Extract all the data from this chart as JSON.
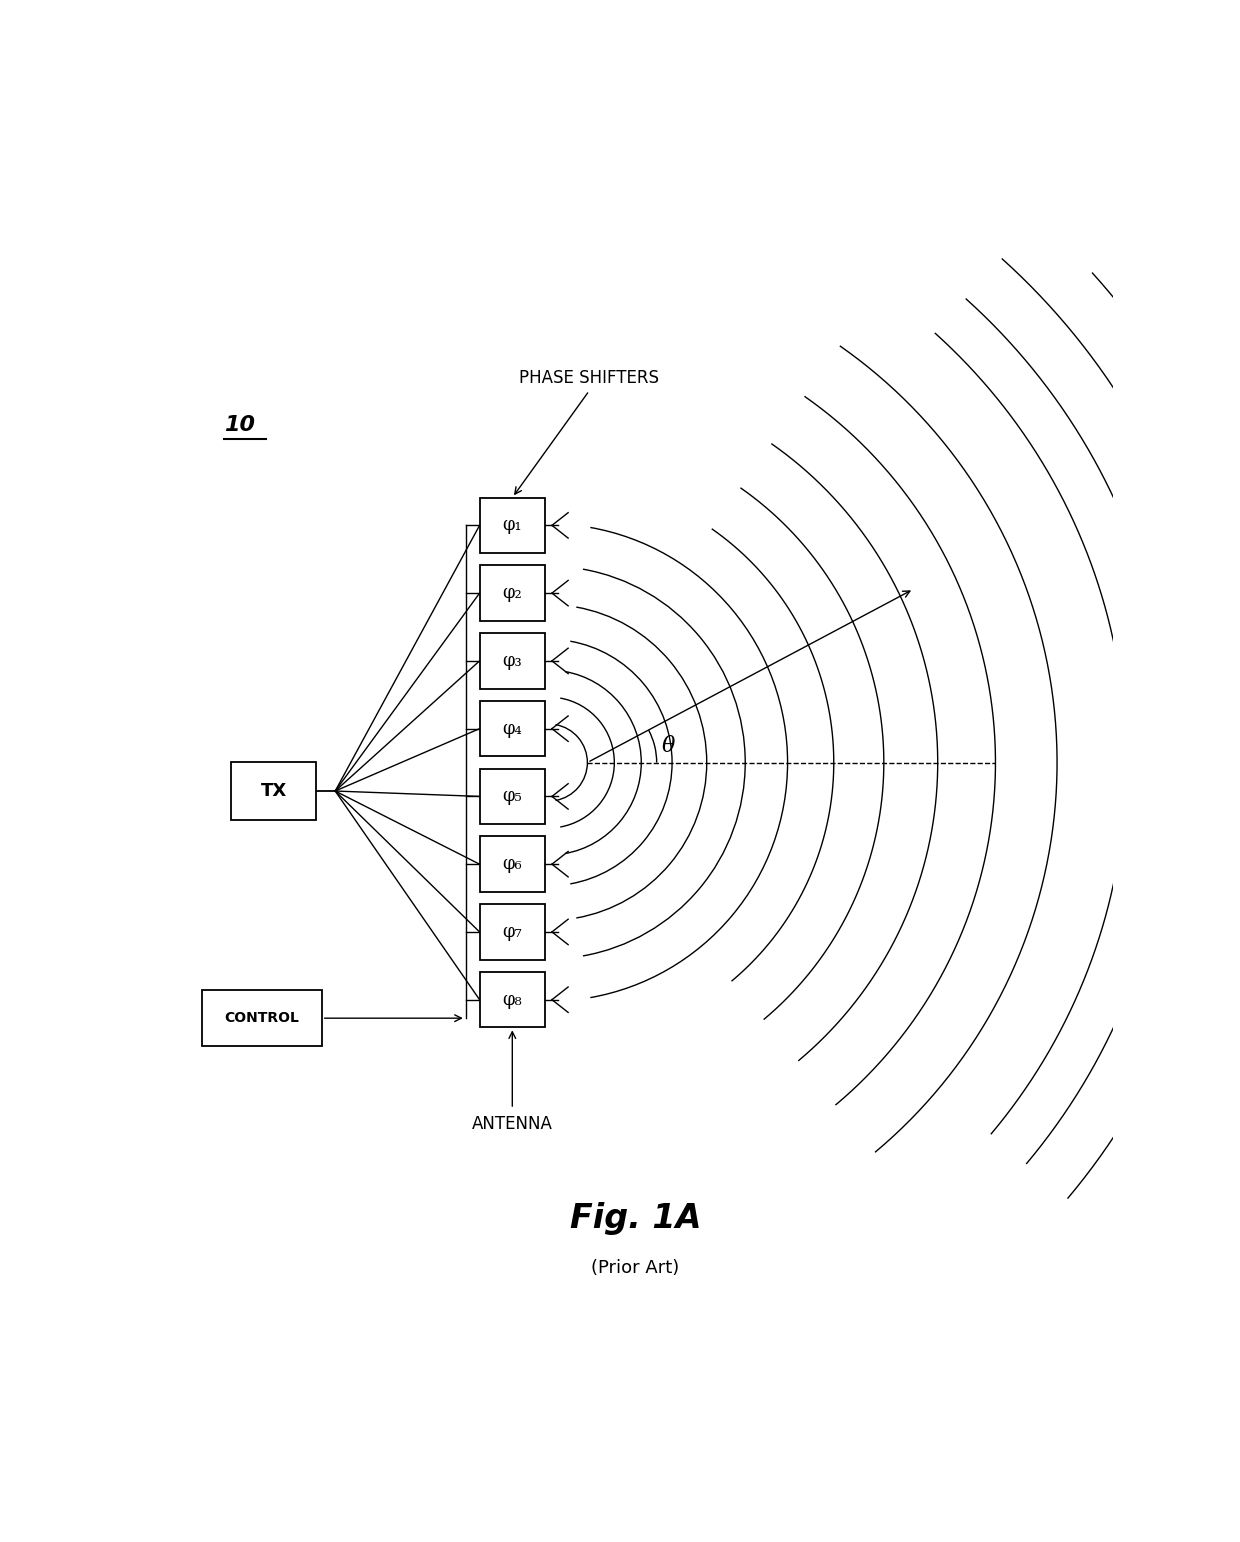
{
  "figure_label": "Fig. 1A",
  "figure_sublabel": "(Prior Art)",
  "system_label": "10",
  "phase_shifters_label": "PHASE SHIFTERS",
  "antenna_label": "ANTENNA",
  "tx_label": "TX",
  "control_label": "CONTROL",
  "theta_label": "θ",
  "phi_labels": [
    "φ₁",
    "φ₂",
    "φ₃",
    "φ₄",
    "φ₅",
    "φ₆",
    "φ₇",
    "φ₈"
  ],
  "bg_color": "#ffffff",
  "line_color": "#000000"
}
